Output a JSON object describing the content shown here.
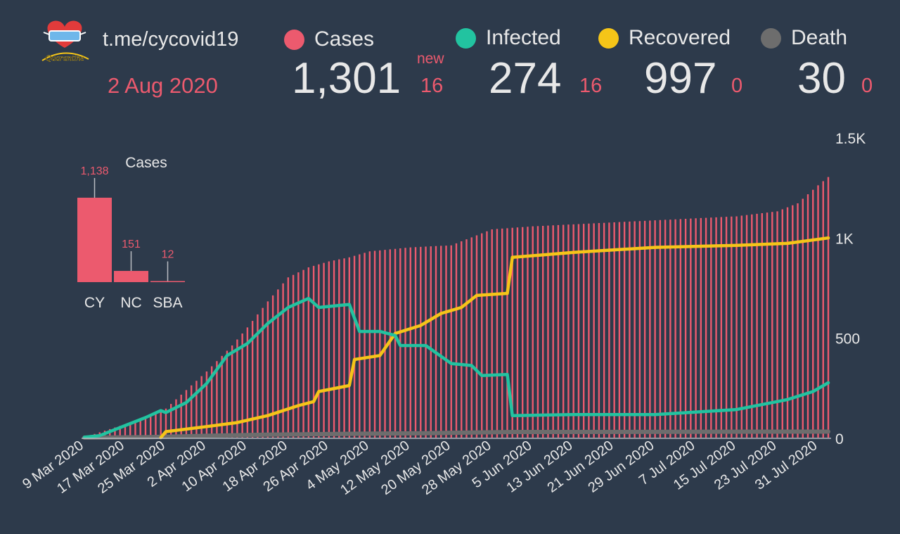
{
  "header": {
    "channel": "t.me/cycovid19",
    "date": "2 Aug 2020",
    "logo_text": "Quarantine"
  },
  "stats": {
    "new_label": "new",
    "cases": {
      "label": "Cases",
      "value": "1,301",
      "new": "16",
      "color": "#ec5a6e"
    },
    "infected": {
      "label": "Infected",
      "value": "274",
      "new": "16",
      "color": "#22c3a0"
    },
    "recovered": {
      "label": "Recovered",
      "value": "997",
      "new": "0",
      "color": "#f5c518"
    },
    "death": {
      "label": "Death",
      "value": "30",
      "new": "0",
      "color": "#6d6d6d"
    }
  },
  "chart_data": [
    {
      "type": "bar",
      "title": "Cases",
      "categories": [
        "CY",
        "NC",
        "SBA"
      ],
      "values": [
        1138,
        151,
        12
      ],
      "value_labels": [
        "1,138",
        "151",
        "12"
      ],
      "color": "#ec5a6e"
    },
    {
      "type": "line",
      "x_start": "9 Mar 2020",
      "x_end": "2 Aug 2020",
      "x_tick_labels": [
        "9 Mar 2020",
        "17 Mar 2020",
        "25 Mar 2020",
        "2 Apr 2020",
        "10 Apr 2020",
        "18 Apr 2020",
        "26 Apr 2020",
        "4 May 2020",
        "12 May 2020",
        "20 May 2020",
        "28 May 2020",
        "5 Jun 2020",
        "13 Jun 2020",
        "21 Jun 2020",
        "29 Jun 2020",
        "7 Jul 2020",
        "15 Jul 2020",
        "23 Jul 2020",
        "31 Jul 2020"
      ],
      "y_tick_labels": [
        "0",
        "500",
        "1K",
        "1.5K"
      ],
      "y_ticks": [
        0,
        500,
        1000,
        1500
      ],
      "ylim": [
        0,
        1500
      ],
      "cases_bars": {
        "name": "Cases",
        "color": "#ec5a6e",
        "knots": [
          [
            "9 Mar 2020",
            2
          ],
          [
            "17 Mar 2020",
            67
          ],
          [
            "25 Mar 2020",
            145
          ],
          [
            "2 Apr 2020",
            330
          ],
          [
            "7 Apr 2020",
            460
          ],
          [
            "10 Apr 2020",
            550
          ],
          [
            "14 Apr 2020",
            680
          ],
          [
            "18 Apr 2020",
            800
          ],
          [
            "22 Apr 2020",
            850
          ],
          [
            "26 Apr 2020",
            880
          ],
          [
            "30 Apr 2020",
            900
          ],
          [
            "4 May 2020",
            930
          ],
          [
            "12 May 2020",
            950
          ],
          [
            "20 May 2020",
            960
          ],
          [
            "28 May 2020",
            1040
          ],
          [
            "5 Jun 2020",
            1055
          ],
          [
            "13 Jun 2020",
            1065
          ],
          [
            "21 Jun 2020",
            1075
          ],
          [
            "29 Jun 2020",
            1085
          ],
          [
            "7 Jul 2020",
            1095
          ],
          [
            "15 Jul 2020",
            1105
          ],
          [
            "23 Jul 2020",
            1130
          ],
          [
            "27 Jul 2020",
            1170
          ],
          [
            "31 Jul 2020",
            1260
          ],
          [
            "2 Aug 2020",
            1301
          ]
        ]
      },
      "series": [
        {
          "name": "Infected",
          "color": "#22c3a0",
          "points": [
            [
              "9 Mar 2020",
              2
            ],
            [
              "12 Mar 2020",
              10
            ],
            [
              "17 Mar 2020",
              60
            ],
            [
              "21 Mar 2020",
              100
            ],
            [
              "24 Mar 2020",
              135
            ],
            [
              "25 Mar 2020",
              125
            ],
            [
              "29 Mar 2020",
              175
            ],
            [
              "2 Apr 2020",
              270
            ],
            [
              "6 Apr 2020",
              410
            ],
            [
              "10 Apr 2020",
              470
            ],
            [
              "14 Apr 2020",
              570
            ],
            [
              "18 Apr 2020",
              650
            ],
            [
              "22 Apr 2020",
              695
            ],
            [
              "24 Apr 2020",
              650
            ],
            [
              "28 Apr 2020",
              660
            ],
            [
              "30 Apr 2020",
              665
            ],
            [
              "2 May 2020",
              530
            ],
            [
              "6 May 2020",
              530
            ],
            [
              "9 May 2020",
              510
            ],
            [
              "10 May 2020",
              460
            ],
            [
              "15 May 2020",
              460
            ],
            [
              "20 May 2020",
              370
            ],
            [
              "24 May 2020",
              360
            ],
            [
              "26 May 2020",
              310
            ],
            [
              "31 May 2020",
              315
            ],
            [
              "1 Jun 2020",
              110
            ],
            [
              "13 Jun 2020",
              115
            ],
            [
              "29 Jun 2020",
              115
            ],
            [
              "15 Jul 2020",
              140
            ],
            [
              "25 Jul 2020",
              190
            ],
            [
              "30 Jul 2020",
              230
            ],
            [
              "2 Aug 2020",
              274
            ]
          ]
        },
        {
          "name": "Recovered",
          "color": "#f5c518",
          "points": [
            [
              "24 Mar 2020",
              0
            ],
            [
              "25 Mar 2020",
              30
            ],
            [
              "2 Apr 2020",
              55
            ],
            [
              "8 Apr 2020",
              75
            ],
            [
              "14 Apr 2020",
              110
            ],
            [
              "20 Apr 2020",
              160
            ],
            [
              "23 Apr 2020",
              180
            ],
            [
              "24 Apr 2020",
              230
            ],
            [
              "30 Apr 2020",
              260
            ],
            [
              "1 May 2020",
              390
            ],
            [
              "6 May 2020",
              410
            ],
            [
              "9 May 2020",
              520
            ],
            [
              "14 May 2020",
              560
            ],
            [
              "18 May 2020",
              620
            ],
            [
              "22 May 2020",
              650
            ],
            [
              "25 May 2020",
              710
            ],
            [
              "31 May 2020",
              720
            ],
            [
              "1 Jun 2020",
              900
            ],
            [
              "13 Jun 2020",
              925
            ],
            [
              "29 Jun 2020",
              950
            ],
            [
              "15 Jul 2020",
              960
            ],
            [
              "25 Jul 2020",
              970
            ],
            [
              "2 Aug 2020",
              997
            ]
          ]
        },
        {
          "name": "Death",
          "color": "#6d6d6d",
          "points": [
            [
              "9 Mar 2020",
              0
            ],
            [
              "21 Mar 2020",
              2
            ],
            [
              "2 Apr 2020",
              9
            ],
            [
              "14 Apr 2020",
              15
            ],
            [
              "26 Apr 2020",
              18
            ],
            [
              "15 May 2020",
              22
            ],
            [
              "1 Jun 2020",
              28
            ],
            [
              "2 Aug 2020",
              30
            ]
          ]
        }
      ]
    }
  ]
}
